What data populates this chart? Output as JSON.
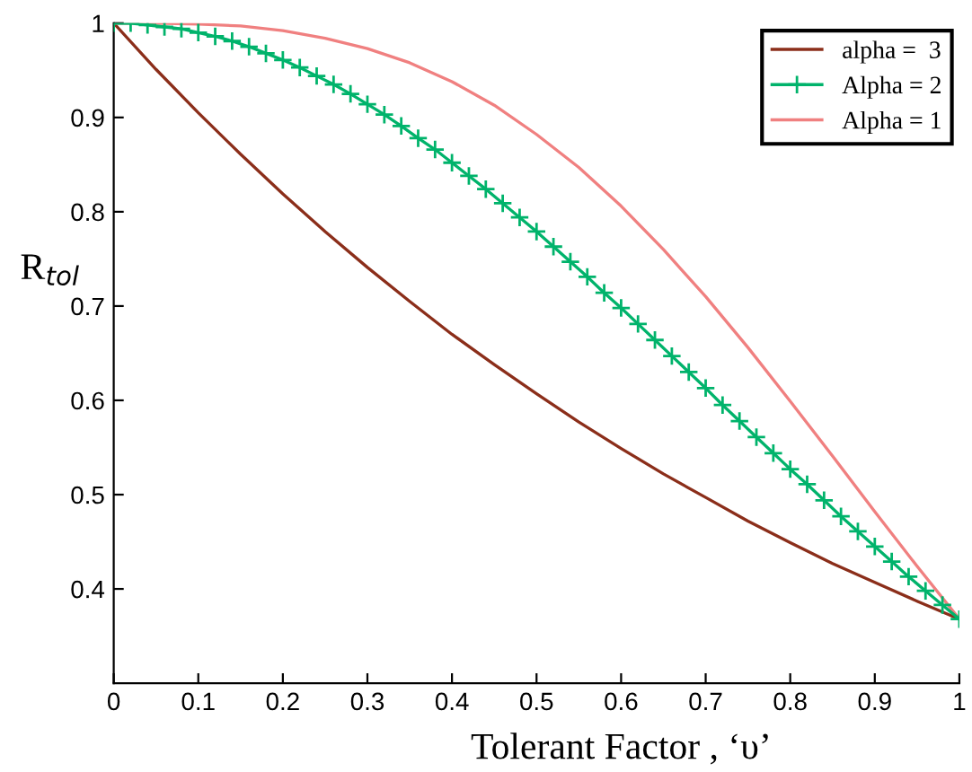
{
  "chart_data": {
    "type": "line",
    "xlabel": "Tolerant Factor , ‘υ’",
    "ylabel": "R$_{tol}$",
    "xlim": [
      0,
      1
    ],
    "ylim": [
      0.3,
      1
    ],
    "xticks": [
      0,
      0.1,
      0.2,
      0.3,
      0.4,
      0.5,
      0.6,
      0.7,
      0.8,
      0.9,
      1
    ],
    "yticks": [
      0.4,
      0.5,
      0.6,
      0.7,
      0.8,
      0.9,
      1
    ],
    "grid": false,
    "legend": "top right",
    "line_style": "solid",
    "series": [
      {
        "name": "alpha =  3",
        "color": "#8b2e1a",
        "marker": "none",
        "x": [
          0,
          0.05,
          0.1,
          0.15,
          0.2,
          0.25,
          0.3,
          0.35,
          0.4,
          0.45,
          0.5,
          0.55,
          0.6,
          0.65,
          0.7,
          0.75,
          0.8,
          0.85,
          0.9,
          0.95,
          1
        ],
        "values": [
          1,
          0.951,
          0.905,
          0.861,
          0.819,
          0.779,
          0.741,
          0.705,
          0.67,
          0.638,
          0.607,
          0.577,
          0.549,
          0.522,
          0.497,
          0.472,
          0.449,
          0.427,
          0.407,
          0.387,
          0.368
        ]
      },
      {
        "name": "Alpha = 2",
        "color": "#00b36b",
        "marker": "cross",
        "x": [
          0,
          0.02,
          0.04,
          0.06,
          0.08,
          0.1,
          0.12,
          0.14,
          0.16,
          0.18,
          0.2,
          0.22,
          0.24,
          0.26,
          0.28,
          0.3,
          0.32,
          0.34,
          0.36,
          0.38,
          0.4,
          0.42,
          0.44,
          0.46,
          0.48,
          0.5,
          0.52,
          0.54,
          0.56,
          0.58,
          0.6,
          0.62,
          0.64,
          0.66,
          0.68,
          0.7,
          0.72,
          0.74,
          0.76,
          0.78,
          0.8,
          0.82,
          0.84,
          0.86,
          0.88,
          0.9,
          0.92,
          0.94,
          0.96,
          0.98,
          1
        ],
        "values": [
          1,
          1.0,
          0.998,
          0.996,
          0.994,
          0.99,
          0.986,
          0.981,
          0.975,
          0.968,
          0.961,
          0.953,
          0.944,
          0.935,
          0.925,
          0.914,
          0.903,
          0.891,
          0.878,
          0.866,
          0.852,
          0.838,
          0.824,
          0.809,
          0.794,
          0.779,
          0.763,
          0.747,
          0.731,
          0.714,
          0.698,
          0.681,
          0.664,
          0.647,
          0.63,
          0.613,
          0.595,
          0.578,
          0.561,
          0.544,
          0.527,
          0.511,
          0.494,
          0.477,
          0.461,
          0.445,
          0.429,
          0.413,
          0.398,
          0.383,
          0.368
        ]
      },
      {
        "name": "Alpha = 1",
        "color": "#f08080",
        "marker": "none",
        "x": [
          0,
          0.05,
          0.1,
          0.15,
          0.2,
          0.25,
          0.3,
          0.35,
          0.4,
          0.45,
          0.5,
          0.55,
          0.6,
          0.65,
          0.7,
          0.75,
          0.8,
          0.85,
          0.9,
          0.95,
          1
        ],
        "values": [
          1,
          1.0,
          0.999,
          0.997,
          0.992,
          0.984,
          0.973,
          0.958,
          0.938,
          0.913,
          0.882,
          0.847,
          0.806,
          0.76,
          0.71,
          0.656,
          0.599,
          0.541,
          0.482,
          0.424,
          0.368
        ]
      }
    ]
  }
}
